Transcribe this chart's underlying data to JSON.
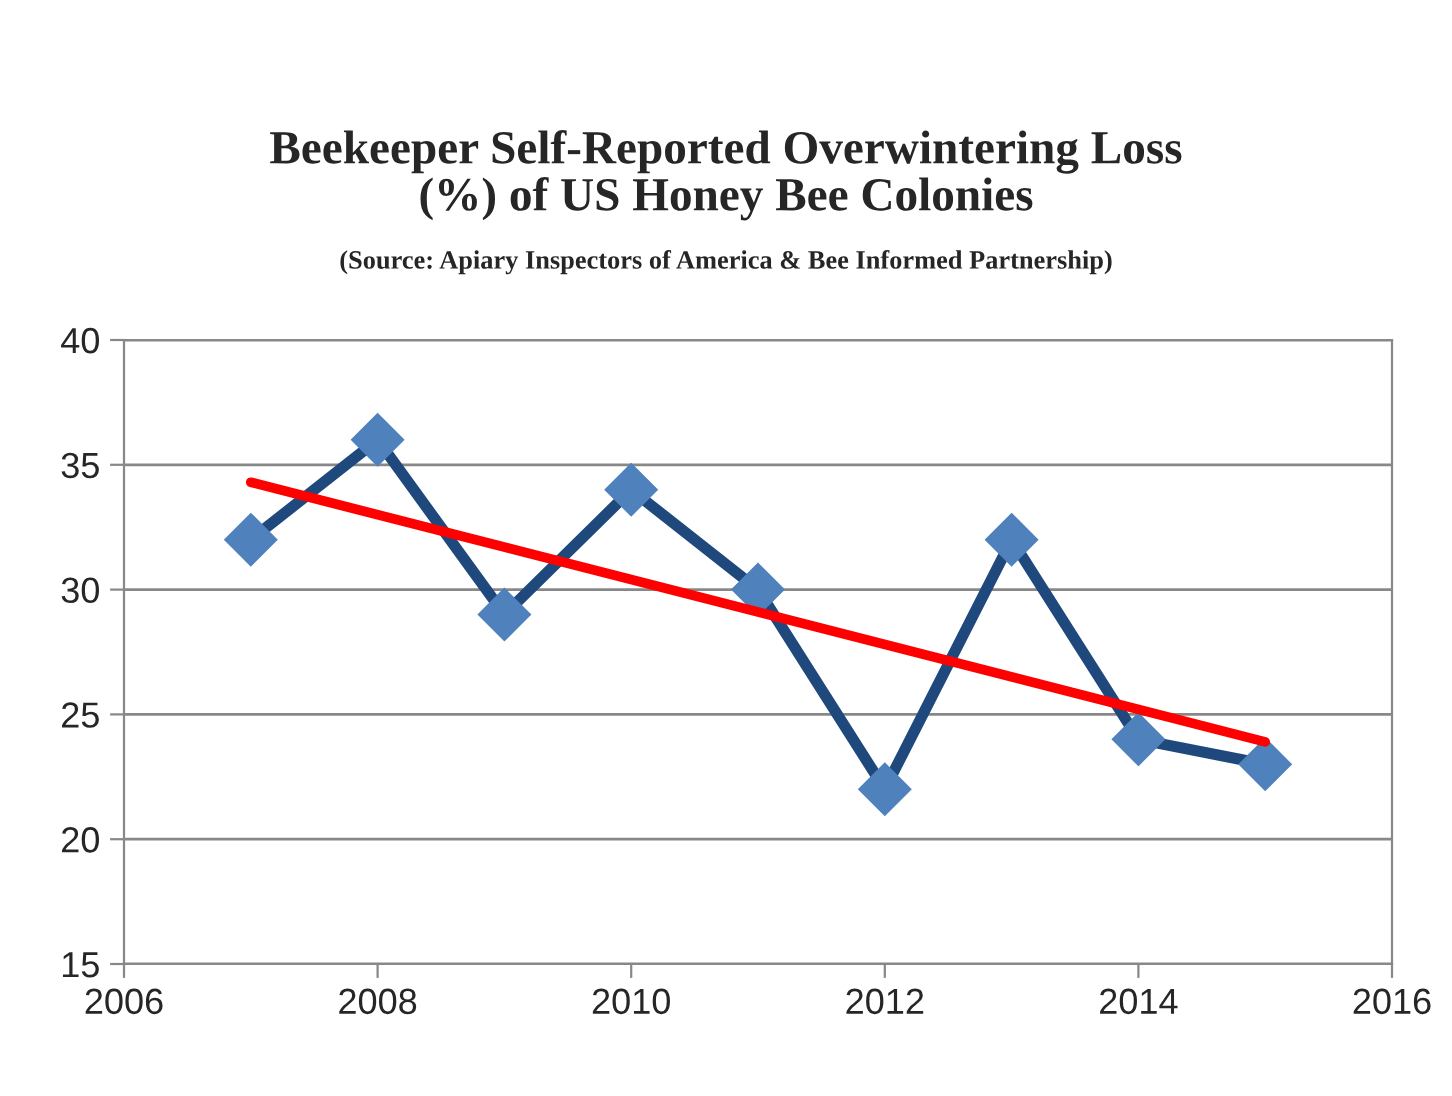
{
  "chart_data": {
    "type": "line",
    "title": "Beekeeper Self-Reported Overwintering Loss\n(%) of US Honey Bee Colonies",
    "subtitle": "(Source: Apiary Inspectors of America & Bee Informed Partnership)",
    "x": [
      2007,
      2008,
      2009,
      2010,
      2011,
      2012,
      2013,
      2014,
      2015
    ],
    "series": [
      {
        "color": "#1f497d",
        "marker": "diamond",
        "values": [
          32,
          36,
          29,
          34,
          30,
          22,
          32,
          24,
          23
        ]
      },
      {
        "color": "#ff0000",
        "marker": "none",
        "x": [
          2007,
          2015
        ],
        "values": [
          34.3,
          23.9
        ]
      }
    ],
    "xlim": [
      2006,
      2016
    ],
    "xticks": [
      2006,
      2008,
      2010,
      2012,
      2014,
      2016
    ],
    "ylim": [
      15,
      40
    ],
    "yticks": [
      15,
      20,
      25,
      30,
      35,
      40
    ],
    "grid": "y",
    "legend": false
  }
}
